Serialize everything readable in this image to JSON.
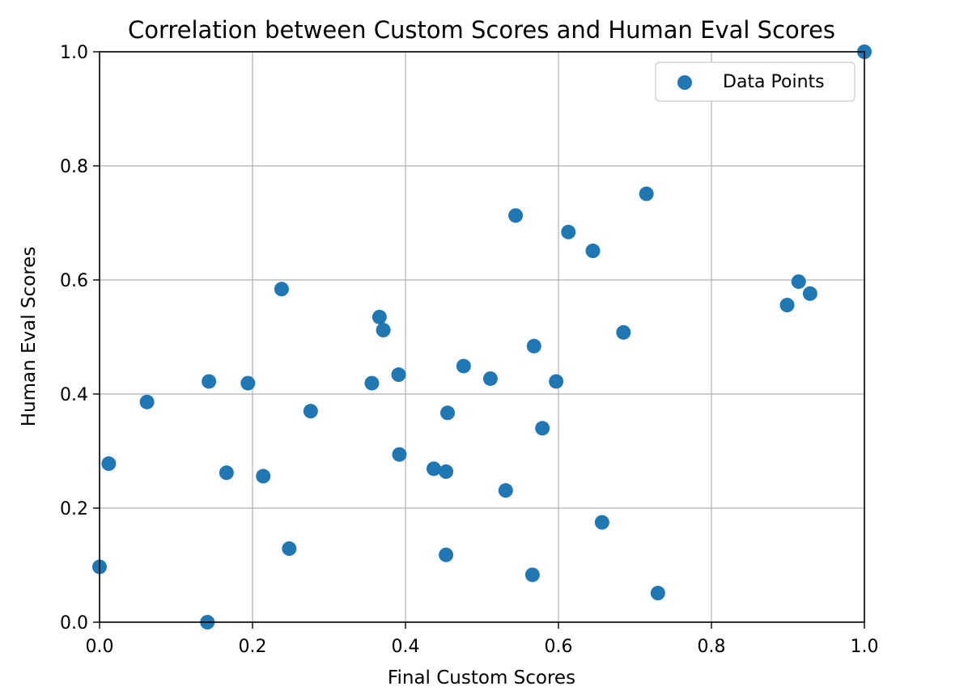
{
  "chart_data": {
    "type": "scatter",
    "title": "Correlation between Custom Scores and Human Eval Scores",
    "xlabel": "Final Custom Scores",
    "ylabel": "Human Eval Scores",
    "xlim": [
      0.0,
      1.0
    ],
    "ylim": [
      0.0,
      1.0
    ],
    "xticks": [
      "0.0",
      "0.2",
      "0.4",
      "0.6",
      "0.8",
      "1.0"
    ],
    "yticks": [
      "0.0",
      "0.2",
      "0.4",
      "0.6",
      "0.8",
      "1.0"
    ],
    "grid": true,
    "legend": {
      "position": "upper-right"
    },
    "series": [
      {
        "name": "Data Points",
        "color": "#1f77b4",
        "x": [
          0.0,
          0.012,
          0.062,
          0.141,
          0.143,
          0.166,
          0.194,
          0.214,
          0.238,
          0.248,
          0.276,
          0.356,
          0.366,
          0.371,
          0.391,
          0.392,
          0.437,
          0.453,
          0.453,
          0.455,
          0.476,
          0.511,
          0.531,
          0.544,
          0.566,
          0.568,
          0.579,
          0.597,
          0.613,
          0.645,
          0.657,
          0.685,
          0.715,
          0.73,
          0.899,
          0.914,
          0.929,
          1.0
        ],
        "y": [
          0.097,
          0.278,
          0.386,
          0.0,
          0.422,
          0.262,
          0.419,
          0.256,
          0.584,
          0.129,
          0.37,
          0.419,
          0.535,
          0.512,
          0.434,
          0.294,
          0.269,
          0.264,
          0.118,
          0.367,
          0.449,
          0.427,
          0.231,
          0.713,
          0.083,
          0.484,
          0.34,
          0.422,
          0.684,
          0.651,
          0.175,
          0.508,
          0.751,
          0.051,
          0.556,
          0.597,
          0.576,
          1.0
        ]
      }
    ]
  }
}
